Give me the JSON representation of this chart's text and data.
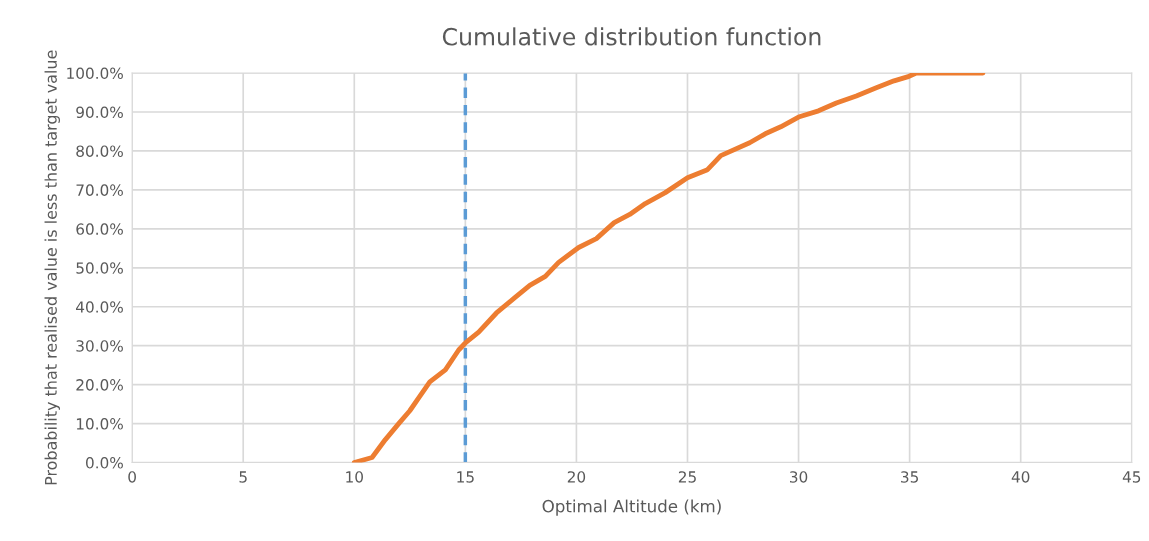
{
  "chart_data": {
    "type": "line",
    "title": "Cumulative distribution function",
    "xlabel": "Optimal Altitude (km)",
    "ylabel": "Probability that realised value is less than target value",
    "x": [
      10.0,
      10.8,
      11.4,
      12.0,
      12.5,
      12.9,
      13.4,
      14.1,
      14.7,
      15.0,
      15.6,
      16.4,
      17.2,
      17.9,
      18.6,
      19.2,
      20.1,
      20.9,
      21.7,
      22.4,
      23.1,
      24.0,
      25.0,
      25.9,
      26.5,
      27.8,
      28.5,
      29.2,
      30.0,
      30.9,
      31.7,
      32.6,
      33.5,
      34.3,
      34.9,
      35.3,
      38.3
    ],
    "series": [
      {
        "color": "#ed7d31",
        "values": [
          0,
          1.3,
          5.9,
          10,
          13.3,
          16.6,
          20.7,
          23.8,
          28.9,
          30.7,
          33.5,
          38.4,
          42.2,
          45.5,
          47.8,
          51.4,
          55.2,
          57.5,
          61.6,
          63.7,
          66.5,
          69.3,
          73.1,
          75.2,
          78.8,
          82.1,
          84.4,
          86.2,
          88.7,
          90.3,
          92.3,
          94.1,
          96.2,
          98,
          99,
          100,
          100
        ]
      }
    ],
    "xlim": [
      0,
      45
    ],
    "xticks": [
      0,
      5,
      10,
      15,
      20,
      25,
      30,
      35,
      40,
      45
    ],
    "ylim": [
      0,
      100
    ],
    "yticks": [
      {
        "value": 0,
        "label": "0.0%"
      },
      {
        "value": 10,
        "label": "10.0%"
      },
      {
        "value": 20,
        "label": "20.0%"
      },
      {
        "value": 30,
        "label": "30.0%"
      },
      {
        "value": 40,
        "label": "40.0%"
      },
      {
        "value": 50,
        "label": "50.0%"
      },
      {
        "value": 60,
        "label": "60.0%"
      },
      {
        "value": 70,
        "label": "70.0%"
      },
      {
        "value": 80,
        "label": "80.0%"
      },
      {
        "value": 90,
        "label": "90.0%"
      },
      {
        "value": 100,
        "label": "100.0%"
      }
    ],
    "ref_lines": [
      {
        "axis": "x",
        "value": 15,
        "color": "#5b9bd5",
        "line_style": "dashed"
      }
    ],
    "grid": true,
    "marker": "none",
    "line_style": "solid"
  }
}
